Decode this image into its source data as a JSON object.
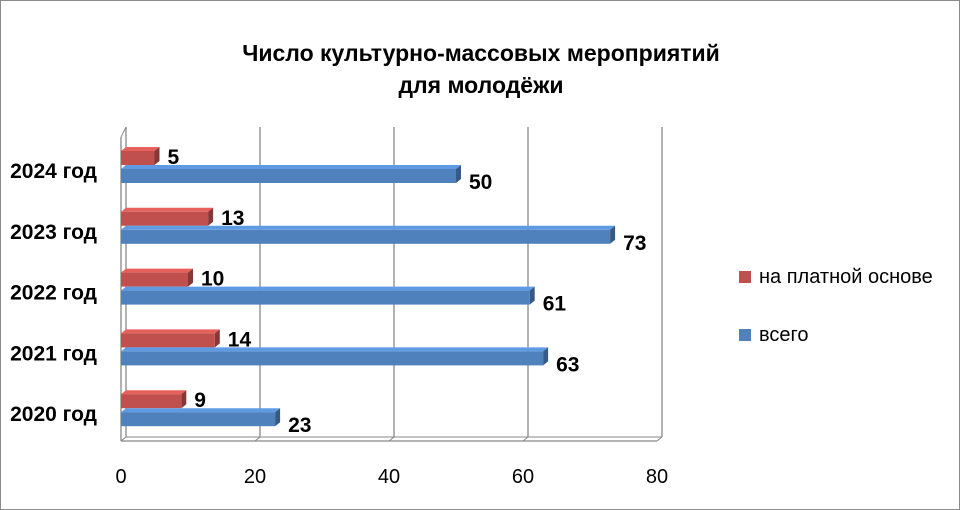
{
  "chart_data": {
    "type": "bar",
    "orientation": "horizontal",
    "title_lines": [
      "Число культурно-массовых мероприятий",
      "для молодёжи"
    ],
    "categories": [
      "2020 год",
      "2021 год",
      "2022 год",
      "2023 год",
      "2024 год"
    ],
    "series": [
      {
        "name": "всего",
        "color": "#4f81bd",
        "values": [
          23,
          63,
          61,
          73,
          50
        ]
      },
      {
        "name": "на платной основе",
        "color": "#c0504d",
        "values": [
          9,
          14,
          10,
          13,
          5
        ]
      }
    ],
    "xlim": [
      0,
      80
    ],
    "xticks": [
      "0",
      "20",
      "40",
      "60",
      "80"
    ],
    "grid": true,
    "legend_position": "right",
    "style": "3d"
  }
}
